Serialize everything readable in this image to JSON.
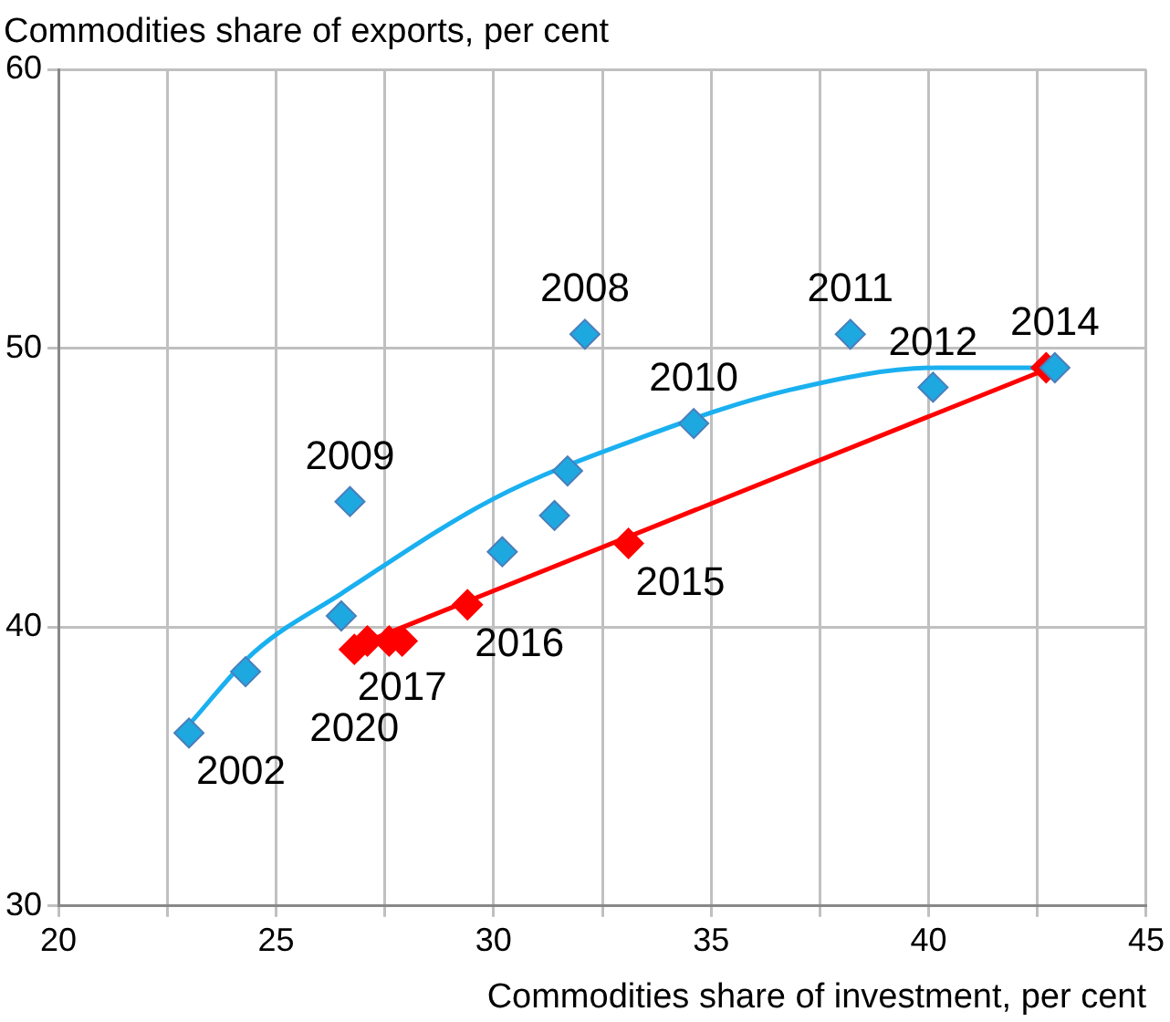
{
  "chart_data": {
    "type": "scatter",
    "ylabel": "Commodities share of exports, per cent",
    "xlabel": "Commodities share of investment, per cent",
    "xlim": [
      20,
      45
    ],
    "xticks": [
      20,
      {
        "value": 22.5,
        "label": null
      },
      25,
      {
        "value": 27.5,
        "label": null
      },
      30,
      {
        "value": 32.5,
        "label": null
      },
      35,
      {
        "value": 37.5,
        "label": null
      },
      40,
      {
        "value": 42.5,
        "label": null
      },
      45
    ],
    "ylim": [
      30,
      60
    ],
    "yticks": [
      30,
      40,
      50,
      60
    ],
    "grid": true,
    "legend": false,
    "marker": "diamond",
    "series": [
      {
        "type": "line",
        "color": "#1ab0f0",
        "marker": "none",
        "x": [
          23,
          24.5,
          26.5,
          30,
          33.4,
          36.8,
          40.2,
          42.9
        ],
        "values": [
          36.5,
          39.1,
          41.2,
          44.6,
          46.8,
          48.5,
          49.3,
          49.3
        ]
      },
      {
        "type": "line",
        "color": "#ff0000",
        "marker": "none",
        "x": [
          26.8,
          42.8
        ],
        "values": [
          39.3,
          49.3
        ]
      },
      {
        "type": "scatter",
        "color": "#1ea8e0",
        "x": [
          23.0,
          24.3,
          26.5,
          26.7,
          30.2,
          31.4,
          31.7,
          32.1,
          34.6,
          38.2,
          40.1,
          42.9
        ],
        "values": [
          36.2,
          38.4,
          40.4,
          44.5,
          42.7,
          44.0,
          45.6,
          50.5,
          47.3,
          50.5,
          48.6,
          49.3
        ]
      },
      {
        "type": "scatter",
        "color": "#ff0000",
        "x": [
          42.7,
          33.1,
          29.4,
          27.9,
          27.6,
          27.1,
          26.8
        ],
        "values": [
          49.3,
          43.0,
          40.8,
          39.5,
          39.5,
          39.5,
          39.2
        ]
      }
    ],
    "annotations": [
      {
        "text": "2002",
        "x": 23.0,
        "y": 36.2
      },
      {
        "text": "2009",
        "x": 26.7,
        "y": 44.5
      },
      {
        "text": "2008",
        "x": 32.1,
        "y": 50.5
      },
      {
        "text": "2010",
        "x": 34.6,
        "y": 47.3
      },
      {
        "text": "2011",
        "x": 38.2,
        "y": 50.5
      },
      {
        "text": "2012",
        "x": 40.1,
        "y": 48.6
      },
      {
        "text": "2014",
        "x": 42.9,
        "y": 49.3
      },
      {
        "text": "2015",
        "x": 33.1,
        "y": 43.0
      },
      {
        "text": "2016",
        "x": 29.4,
        "y": 40.8
      },
      {
        "text": "2017",
        "x": 27.9,
        "y": 39.5
      },
      {
        "text": "2020",
        "x": 26.8,
        "y": 39.2
      }
    ]
  }
}
